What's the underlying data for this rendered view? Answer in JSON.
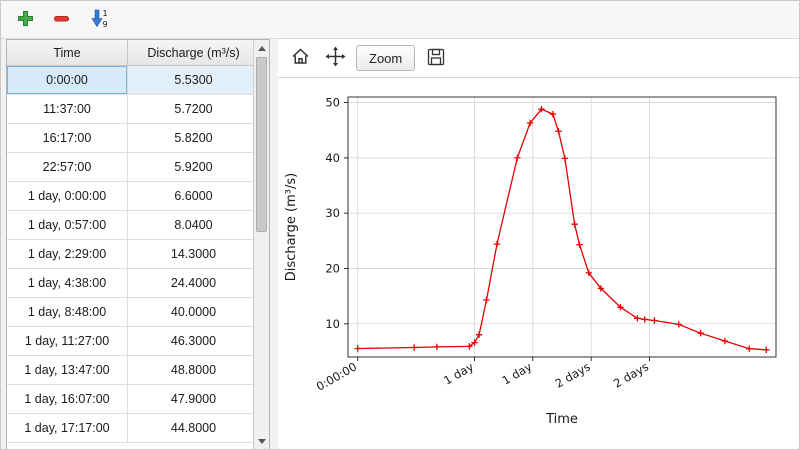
{
  "main_toolbar": {
    "buttons": [
      {
        "name": "add-row",
        "icon": "plus-icon",
        "color": "#41ad49"
      },
      {
        "name": "remove-row",
        "icon": "minus-icon",
        "color": "#e23b2e"
      },
      {
        "name": "sort-rows",
        "icon": "sort-ascending-1-9-icon",
        "color": "#3a7bd5",
        "digit_top": "1",
        "digit_bottom": "9"
      }
    ]
  },
  "table": {
    "headers": [
      "Time",
      "Discharge (m³/s)"
    ],
    "selected_row": 0,
    "rows": [
      [
        "0:00:00",
        "5.5300"
      ],
      [
        "11:37:00",
        "5.7200"
      ],
      [
        "16:17:00",
        "5.8200"
      ],
      [
        "22:57:00",
        "5.9200"
      ],
      [
        "1 day, 0:00:00",
        "6.6000"
      ],
      [
        "1 day, 0:57:00",
        "8.0400"
      ],
      [
        "1 day, 2:29:00",
        "14.3000"
      ],
      [
        "1 day, 4:38:00",
        "24.4000"
      ],
      [
        "1 day, 8:48:00",
        "40.0000"
      ],
      [
        "1 day, 11:27:00",
        "46.3000"
      ],
      [
        "1 day, 13:47:00",
        "48.8000"
      ],
      [
        "1 day, 16:07:00",
        "47.9000"
      ],
      [
        "1 day, 17:17:00",
        "44.8000"
      ]
    ]
  },
  "chart_toolbar": {
    "buttons": [
      {
        "name": "home",
        "icon": "home-icon"
      },
      {
        "name": "pan",
        "icon": "pan-arrows-icon"
      },
      {
        "name": "zoom",
        "label": "Zoom"
      },
      {
        "name": "save",
        "icon": "save-icon"
      }
    ],
    "zoom_label": "Zoom"
  },
  "chart_data": {
    "type": "line",
    "title": "",
    "xlabel": "Time",
    "ylabel": "Discharge (m³/s)",
    "line_color": "#e60000",
    "marker": "plus",
    "grid": true,
    "xlim_hours": [
      -2,
      86
    ],
    "ylim": [
      4,
      51
    ],
    "yticks": [
      10,
      20,
      30,
      40,
      50
    ],
    "xticks": [
      {
        "t": 0,
        "label": "0:00:00"
      },
      {
        "t": 24,
        "label": "1 day"
      },
      {
        "t": 36,
        "label": "1 day"
      },
      {
        "t": 48,
        "label": "2 days"
      },
      {
        "t": 60,
        "label": "2 days"
      }
    ],
    "x_hours": [
      0,
      11.62,
      16.28,
      22.95,
      24.0,
      24.95,
      26.48,
      28.63,
      32.8,
      35.45,
      37.78,
      40.12,
      41.28,
      42.6,
      44.6,
      45.6,
      47.5,
      50.0,
      54.0,
      57.5,
      59.0,
      61.0,
      66.0,
      70.5,
      75.5,
      80.5,
      84.0
    ],
    "values": [
      5.53,
      5.72,
      5.82,
      5.92,
      6.6,
      8.04,
      14.3,
      24.4,
      40.0,
      46.3,
      48.8,
      47.9,
      44.8,
      39.9,
      28.0,
      24.3,
      19.2,
      16.4,
      13.0,
      11.0,
      10.8,
      10.6,
      9.9,
      8.3,
      6.9,
      5.5,
      5.3
    ]
  }
}
